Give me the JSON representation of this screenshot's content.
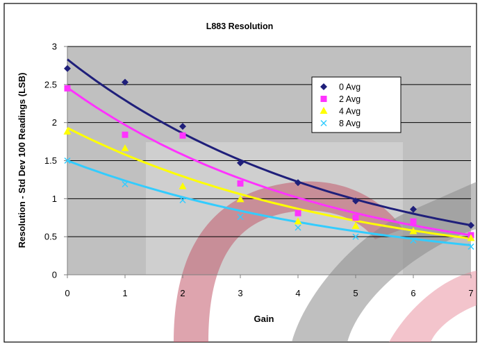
{
  "chart_data": {
    "type": "scatter",
    "title": "L883 Resolution",
    "xlabel": "Gain",
    "ylabel": "Resolution - Std Dev 100 Readings (LSB)",
    "xlim": [
      0,
      7
    ],
    "ylim": [
      0,
      3
    ],
    "x_ticks": [
      "0",
      "1",
      "2",
      "3",
      "4",
      "5",
      "6",
      "7"
    ],
    "y_ticks": [
      "0",
      "0.5",
      "1",
      "1.5",
      "2",
      "2.5",
      "3"
    ],
    "grid": "horizontal",
    "legend_position": "right",
    "trendline": "exponential",
    "series": [
      {
        "name": "0 Avg",
        "marker": "diamond",
        "color": "#1f1f7a",
        "x": [
          0,
          1,
          2,
          3,
          4,
          5,
          6,
          7
        ],
        "y": [
          2.71,
          2.53,
          1.95,
          1.47,
          1.21,
          0.97,
          0.86,
          0.65
        ],
        "fit": {
          "a": 2.83,
          "b": -0.21
        }
      },
      {
        "name": "2 Avg",
        "marker": "square",
        "color": "#ff33ff",
        "x": [
          0,
          1,
          2,
          3,
          4,
          5,
          6,
          7
        ],
        "y": [
          2.45,
          1.84,
          1.83,
          1.2,
          0.81,
          0.75,
          0.7,
          0.52
        ],
        "fit": {
          "a": 2.46,
          "b": -0.222
        }
      },
      {
        "name": "4 Avg",
        "marker": "triangle",
        "color": "#ffff00",
        "x": [
          0,
          1,
          2,
          3,
          4,
          5,
          6,
          7
        ],
        "y": [
          1.88,
          1.66,
          1.16,
          0.99,
          0.7,
          0.64,
          0.57,
          0.48
        ],
        "fit": {
          "a": 1.93,
          "b": -0.2
        }
      },
      {
        "name": "8 Avg",
        "marker": "x",
        "color": "#33ccff",
        "x": [
          0,
          1,
          2,
          3,
          4,
          5,
          6,
          7
        ],
        "y": [
          1.5,
          1.19,
          0.98,
          0.76,
          0.62,
          0.5,
          0.45,
          0.37
        ],
        "fit": {
          "a": 1.5,
          "b": -0.193
        }
      }
    ]
  }
}
